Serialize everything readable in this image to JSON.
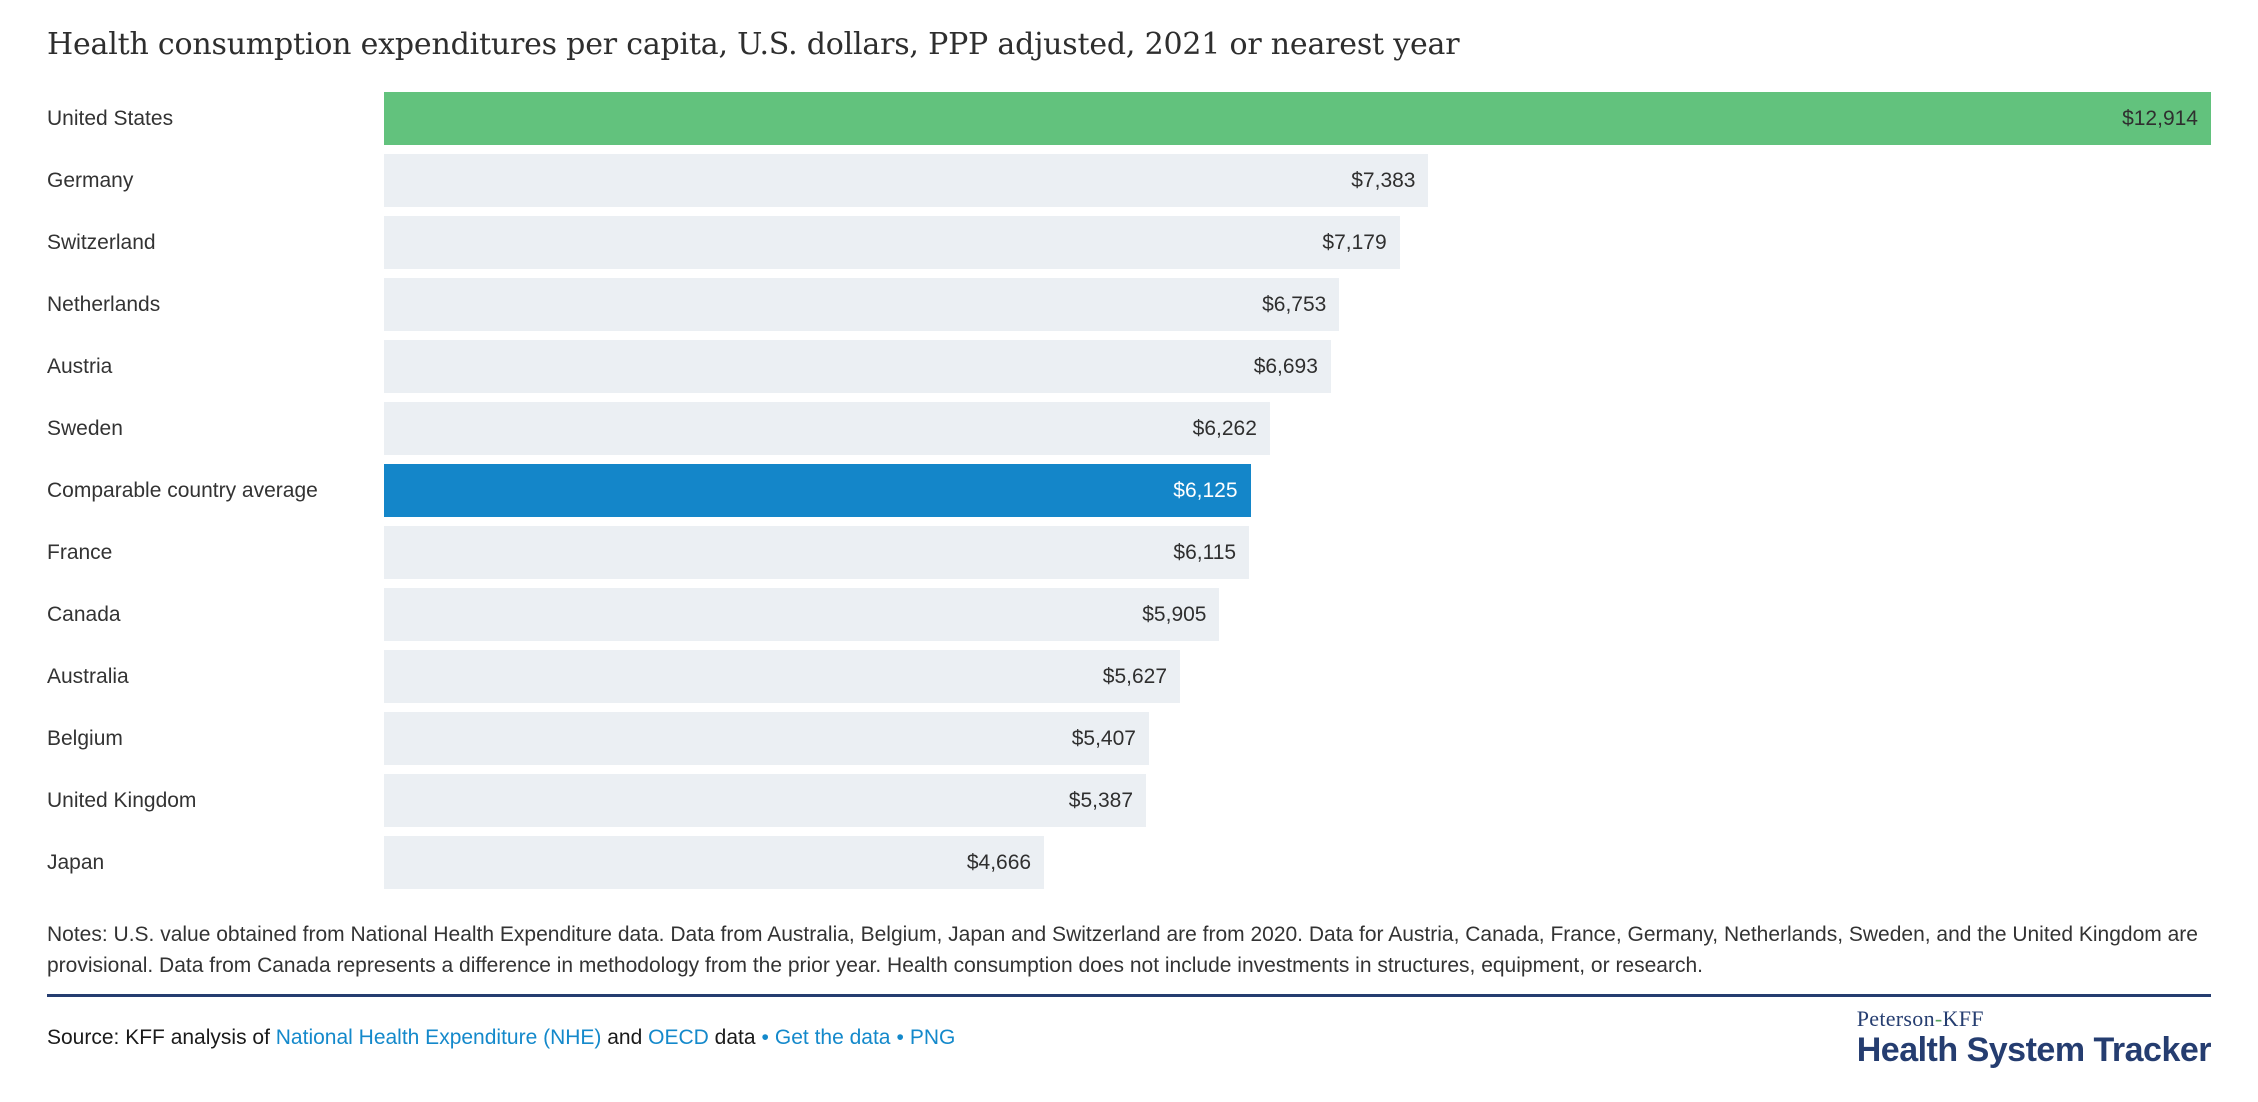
{
  "title": "Health consumption expenditures per capita, U.S. dollars, PPP adjusted, 2021 or nearest year",
  "chart_data": {
    "type": "bar",
    "orientation": "horizontal",
    "title": "Health consumption expenditures per capita, U.S. dollars, PPP adjusted, 2021 or nearest year",
    "categories": [
      "United States",
      "Germany",
      "Switzerland",
      "Netherlands",
      "Austria",
      "Sweden",
      "Comparable country average",
      "France",
      "Canada",
      "Australia",
      "Belgium",
      "United Kingdom",
      "Japan"
    ],
    "values": [
      12914,
      7383,
      7179,
      6753,
      6693,
      6262,
      6125,
      6115,
      5905,
      5627,
      5407,
      5387,
      4666
    ],
    "value_labels": [
      "$12,914",
      "$7,383",
      "$7,179",
      "$6,753",
      "$6,693",
      "$6,262",
      "$6,125",
      "$6,115",
      "$5,905",
      "$5,627",
      "$5,407",
      "$5,387",
      "$4,666"
    ],
    "bar_variants": [
      "green",
      "default",
      "default",
      "default",
      "default",
      "default",
      "blue",
      "default",
      "default",
      "default",
      "default",
      "default",
      "default"
    ],
    "xlim": [
      0,
      12914
    ],
    "xlabel": "",
    "ylabel": "",
    "grid": false,
    "legend": false,
    "bar_colors": {
      "green": "#62c27d",
      "blue": "#1486c9",
      "default": "#ebeff3"
    },
    "value_label_position": "inside-right"
  },
  "notes": "Notes: U.S. value obtained from National Health Expenditure data. Data from Australia, Belgium, Japan and Switzerland are from 2020. Data for Austria, Canada, France, Germany, Netherlands, Sweden, and the United Kingdom are provisional. Data from Canada represents a difference in methodology from the prior year. Health consumption does not include investments in structures, equipment, or research.",
  "source": {
    "segments": [
      {
        "type": "text",
        "text": "Source: KFF analysis of "
      },
      {
        "type": "link",
        "text": "National Health Expenditure (NHE)"
      },
      {
        "type": "text",
        "text": " and "
      },
      {
        "type": "link",
        "text": "OECD"
      },
      {
        "type": "text",
        "text": " data"
      },
      {
        "type": "bullet",
        "text": "•"
      },
      {
        "type": "link",
        "text": "Get the data"
      },
      {
        "type": "bullet",
        "text": "•"
      },
      {
        "type": "link",
        "text": "PNG"
      }
    ]
  },
  "logo": {
    "brand_left": "Peterson",
    "hyphen": "-",
    "brand_right": "KFF",
    "product": "Health System Tracker"
  },
  "colors": {
    "us_bar": "#62c27d",
    "average_bar": "#1486c9",
    "country_bar": "#ebeff3",
    "text": "#333333",
    "navy": "#253d70",
    "link": "#1489cb"
  }
}
